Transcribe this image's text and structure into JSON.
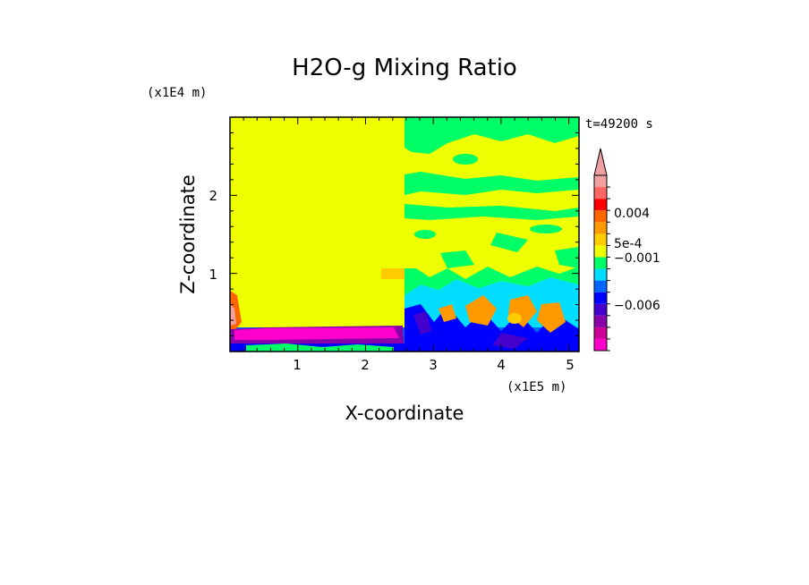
{
  "chart_data": {
    "type": "heatmap",
    "title": "H2O-g Mixing Ratio",
    "xlabel": "X-coordinate",
    "ylabel": "Z-coordinate",
    "x_scale_label": "(x1E5 m)",
    "y_scale_label": "(x1E4 m)",
    "time_label": "t=49200 s",
    "xlim": [
      0,
      5.15
    ],
    "ylim": [
      0,
      3.0
    ],
    "x_ticks": [
      "1",
      "2",
      "3",
      "4",
      "5"
    ],
    "y_ticks": [
      "1",
      "2"
    ],
    "colorbar": {
      "labels": [
        "0.004",
        "5e-4",
        "−0.001",
        "−0.006"
      ],
      "colors": [
        "#ff00cc",
        "#cc0099",
        "#8800aa",
        "#4400cc",
        "#0000ff",
        "#0066ff",
        "#00ddff",
        "#00ff66",
        "#eeff00",
        "#ffcc00",
        "#ff9900",
        "#ff6600",
        "#ff0000",
        "#ff6666",
        "#f0a0a0"
      ]
    },
    "regions": {
      "background": "#eeff00",
      "upper_band": "#00ff66",
      "lower_band": "#0066ff",
      "bottom_layer": "#ff00cc",
      "convective": "#ff9900",
      "shallow": "#00ddff"
    }
  }
}
